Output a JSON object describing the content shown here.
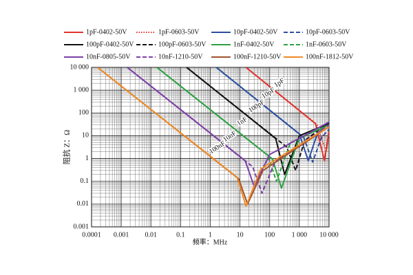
{
  "chart_data": {
    "type": "line",
    "x_label": "频率：MHz",
    "y_label": "阻抗 Z：Ω",
    "xscale": "log",
    "yscale": "log",
    "grid": true,
    "minor_grid": true,
    "xlim": [
      0.0001,
      10000
    ],
    "ylim": [
      0.001,
      10000
    ],
    "xticks": [
      0.0001,
      0.001,
      0.01,
      0.1,
      1,
      10,
      100,
      {
        "value": 1000,
        "label": "1 000"
      },
      {
        "value": 10000,
        "label": "10 000"
      }
    ],
    "yticks": [
      0.001,
      0.01,
      0.1,
      1,
      10,
      100,
      {
        "value": 1000,
        "label": "1 000"
      },
      {
        "value": 10000,
        "label": "10 000"
      }
    ],
    "series": [
      {
        "name": "1pF-0402-50V",
        "color": "#e0322b",
        "dash": "solid",
        "x": [
          15.9,
          3500,
          7000,
          10000
        ],
        "values": [
          10000,
          34,
          0.8,
          16
        ]
      },
      {
        "name": "1pF-0603-50V",
        "color": "#e0322b",
        "dash": "dotted",
        "x": [
          15.9,
          4000,
          8000,
          10000
        ],
        "values": [
          10000,
          30,
          2,
          9
        ]
      },
      {
        "name": "10pF-0402-50V",
        "color": "#2c4ea0",
        "dash": "solid",
        "x": [
          1.59,
          1000,
          2000,
          4000,
          10000
        ],
        "values": [
          10000,
          12,
          0.8,
          12,
          38
        ]
      },
      {
        "name": "10pF-0603-50V",
        "color": "#2c4ea0",
        "dash": "dashed",
        "x": [
          1.59,
          1400,
          2800,
          5600,
          10000
        ],
        "values": [
          10000,
          8.5,
          0.7,
          8.5,
          19
        ]
      },
      {
        "name": "100pF-0402-50V",
        "color": "#111111",
        "dash": "solid",
        "x": [
          0.159,
          160,
          320,
          1000,
          10000
        ],
        "values": [
          10000,
          7.5,
          0.2,
          10,
          35
        ]
      },
      {
        "name": "100pF-0603-50V",
        "color": "#111111",
        "dash": "dashed",
        "x": [
          0.159,
          375,
          750,
          1500,
          10000
        ],
        "values": [
          10000,
          3.2,
          0.3,
          6,
          40
        ]
      },
      {
        "name": "1nF-0402-50V",
        "color": "#2ea043",
        "dash": "solid",
        "x": [
          0.0159,
          125,
          250,
          1000,
          10000
        ],
        "values": [
          10000,
          0.95,
          0.05,
          8,
          30
        ]
      },
      {
        "name": "1nF-0603-50V",
        "color": "#2ea043",
        "dash": "dashed",
        "x": [
          0.0159,
          85,
          170,
          500,
          10000
        ],
        "values": [
          10000,
          1.4,
          0.1,
          5,
          30
        ]
      },
      {
        "name": "10nF-0805-50V",
        "color": "#7b3fa6",
        "dash": "solid",
        "x": [
          0.00159,
          15,
          30,
          100,
          10000
        ],
        "values": [
          10000,
          0.8,
          0.06,
          1.5,
          40
        ]
      },
      {
        "name": "10nF-1210-50V",
        "color": "#7b3fa6",
        "dash": "dashed",
        "x": [
          0.00159,
          27,
          55,
          150,
          10000
        ],
        "values": [
          10000,
          0.43,
          0.03,
          0.7,
          30
        ]
      },
      {
        "name": "100nF-1210-50V",
        "color": "#a0522d",
        "dash": "solid",
        "x": [
          0.000159,
          9,
          18,
          60,
          10000
        ],
        "values": [
          10000,
          0.13,
          0.01,
          0.3,
          25
        ]
      },
      {
        "name": "100nF-1812-50V",
        "color": "#f08a24",
        "dash": "solid",
        "x": [
          0.000159,
          8,
          16,
          50,
          10000
        ],
        "values": [
          10000,
          0.15,
          0.008,
          0.35,
          25
        ]
      }
    ],
    "annotations": [
      "1pF",
      "10pF",
      "100pF",
      "1nF",
      "10nF",
      "100nF"
    ]
  }
}
